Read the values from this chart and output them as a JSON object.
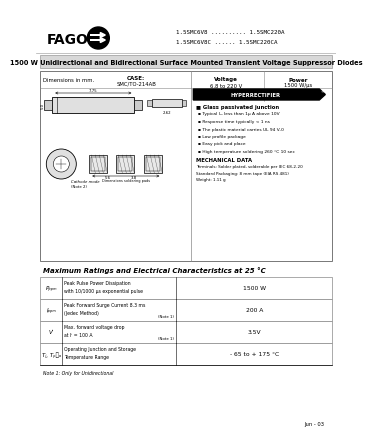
{
  "bg_color": "#ffffff",
  "company": "FAGOR",
  "part_numbers_line1": "1.5SMC6V8 .......... 1.5SMC220A",
  "part_numbers_line2": "1.5SMC6V8C ...... 1.5SMC220CA",
  "main_title": "1500 W Unidirectional and Bidirectional Surface Mounted Transient Voltage Suppressor Diodes",
  "case_label": "CASE:",
  "case_value": "SMC/TO-214AB",
  "voltage_label": "Voltage",
  "voltage_value": "6.8 to 220 V",
  "power_label": "Power",
  "power_value": "1500 W/μs",
  "hyperrectifier_text": "HYPERRECTIFIER",
  "features_title": "Glass passivated junction",
  "features": [
    "Typical Iₘ less than 1μ A above 10V",
    "Response time typically < 1 ns",
    "The plastic material carries UL 94 V-0",
    "Low profile package",
    "Easy pick and place",
    "High temperature soldering 260 °C 10 sec"
  ],
  "mech_title": "MECHANICAL DATA",
  "mech_lines": [
    "Terminals: Solder plated, solderable per IEC 68-2-20",
    "Standard Packaging: 8 mm tape (EIA RS 481)",
    "Weight: 1.11 g"
  ],
  "table_title": "Maximum Ratings and Electrical Characteristics at 25 °C",
  "table_rows": [
    {
      "sym": "Pₚₚₘ",
      "desc1": "Peak Pulse Power Dissipation",
      "desc2": "with 10/1000 μs exponential pulse",
      "note": "",
      "value": "1500 W"
    },
    {
      "sym": "Iₚₚₘ",
      "desc1": "Peak Forward Surge Current 8.3 ms",
      "desc2": "(Jedec Method)",
      "note": "(Note 1)",
      "value": "200 A"
    },
    {
      "sym": "Vⁱ",
      "desc1": "Max. forward voltage drop",
      "desc2": "at Iⁱ = 100 A",
      "note": "(Note 1)",
      "value": "3.5V"
    },
    {
      "sym": "Tⱼ, Tₚ₞ₐ",
      "desc1": "Operating Junction and Storage",
      "desc2": "Temperature Range",
      "note": "",
      "value": "- 65 to + 175 °C"
    }
  ],
  "note": "Note 1: Only for Unidirectional",
  "date": "Jun - 03"
}
